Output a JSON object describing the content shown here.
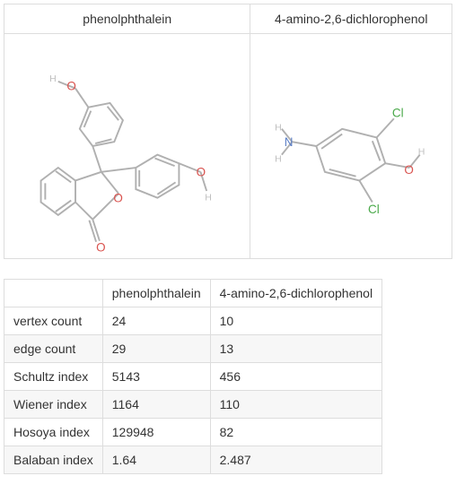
{
  "compounds": {
    "a": {
      "name": "phenolphthalein"
    },
    "b": {
      "name": "4-amino-2,6-dichlorophenol"
    }
  },
  "structure_colors": {
    "bond": "#b0b0b0",
    "oxygen": "#d9534f",
    "nitrogen": "#5b7fc7",
    "chlorine": "#4aa94a",
    "hydrogen": "#bfbfbf"
  },
  "properties": [
    {
      "label": "vertex count",
      "a": "24",
      "b": "10"
    },
    {
      "label": "edge count",
      "a": "29",
      "b": "13"
    },
    {
      "label": "Schultz index",
      "a": "5143",
      "b": "456"
    },
    {
      "label": "Wiener index",
      "a": "1164",
      "b": "110"
    },
    {
      "label": "Hosoya index",
      "a": "129948",
      "b": "82"
    },
    {
      "label": "Balaban index",
      "a": "1.64",
      "b": "2.487"
    }
  ]
}
